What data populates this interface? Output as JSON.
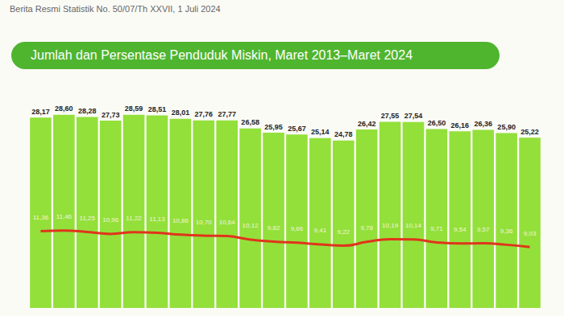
{
  "chart_data": {
    "type": "bar",
    "title": "Jumlah dan Persentase Penduduk Miskin, Maret 2013–Maret 2024",
    "subtitle": "Berita Resmi Statistik No. 50/07/Th XXVII, 1 Juli 2024",
    "categories": [
      null,
      null,
      null,
      null,
      null,
      null,
      null,
      null,
      null,
      null,
      null,
      null,
      null,
      null,
      null,
      null,
      null,
      null,
      null,
      null,
      null,
      null
    ],
    "series": [
      {
        "type": "bar",
        "color": "#93e03a",
        "values": [
          28.17,
          28.6,
          28.28,
          27.73,
          28.59,
          28.51,
          28.01,
          27.76,
          27.77,
          26.58,
          25.95,
          25.67,
          25.14,
          24.78,
          26.42,
          27.55,
          27.54,
          26.5,
          26.16,
          26.36,
          25.9,
          25.22
        ],
        "value_labels": [
          "28,17",
          "28,60",
          "28,28",
          "27,73",
          "28,59",
          "28,51",
          "28,01",
          "27,76",
          "27,77",
          "26,58",
          "25,95",
          "25,67",
          "25,14",
          "24,78",
          "26,42",
          "27,55",
          "27,54",
          "26,50",
          "26,16",
          "26,36",
          "25,90",
          "25,22"
        ]
      },
      {
        "type": "line",
        "color": "#e0341c",
        "axis": "y2",
        "values": [
          11.36,
          11.46,
          11.25,
          10.96,
          11.22,
          11.13,
          10.86,
          10.7,
          10.64,
          10.12,
          9.82,
          9.66,
          9.41,
          9.22,
          9.78,
          10.19,
          10.14,
          9.71,
          9.54,
          9.57,
          9.36,
          9.03
        ],
        "value_labels": [
          "11,36",
          "11,46",
          "11,25",
          "10,96",
          "11,22",
          "11,13",
          "10,86",
          "10,70",
          "10,64",
          "10,12",
          "9,82",
          "9,66",
          "9,41",
          "9,22",
          "9,78",
          "10,19",
          "10,14",
          "9,71",
          "9,54",
          "9,57",
          "9,36",
          "9,03"
        ]
      }
    ],
    "ylim": [
      0,
      30
    ],
    "yticks": [
      0,
      30
    ],
    "y2lim": [
      0,
      30
    ],
    "y2ticks": [
      0,
      30
    ],
    "grid": false,
    "data_labels": true,
    "tick_labels": false
  }
}
